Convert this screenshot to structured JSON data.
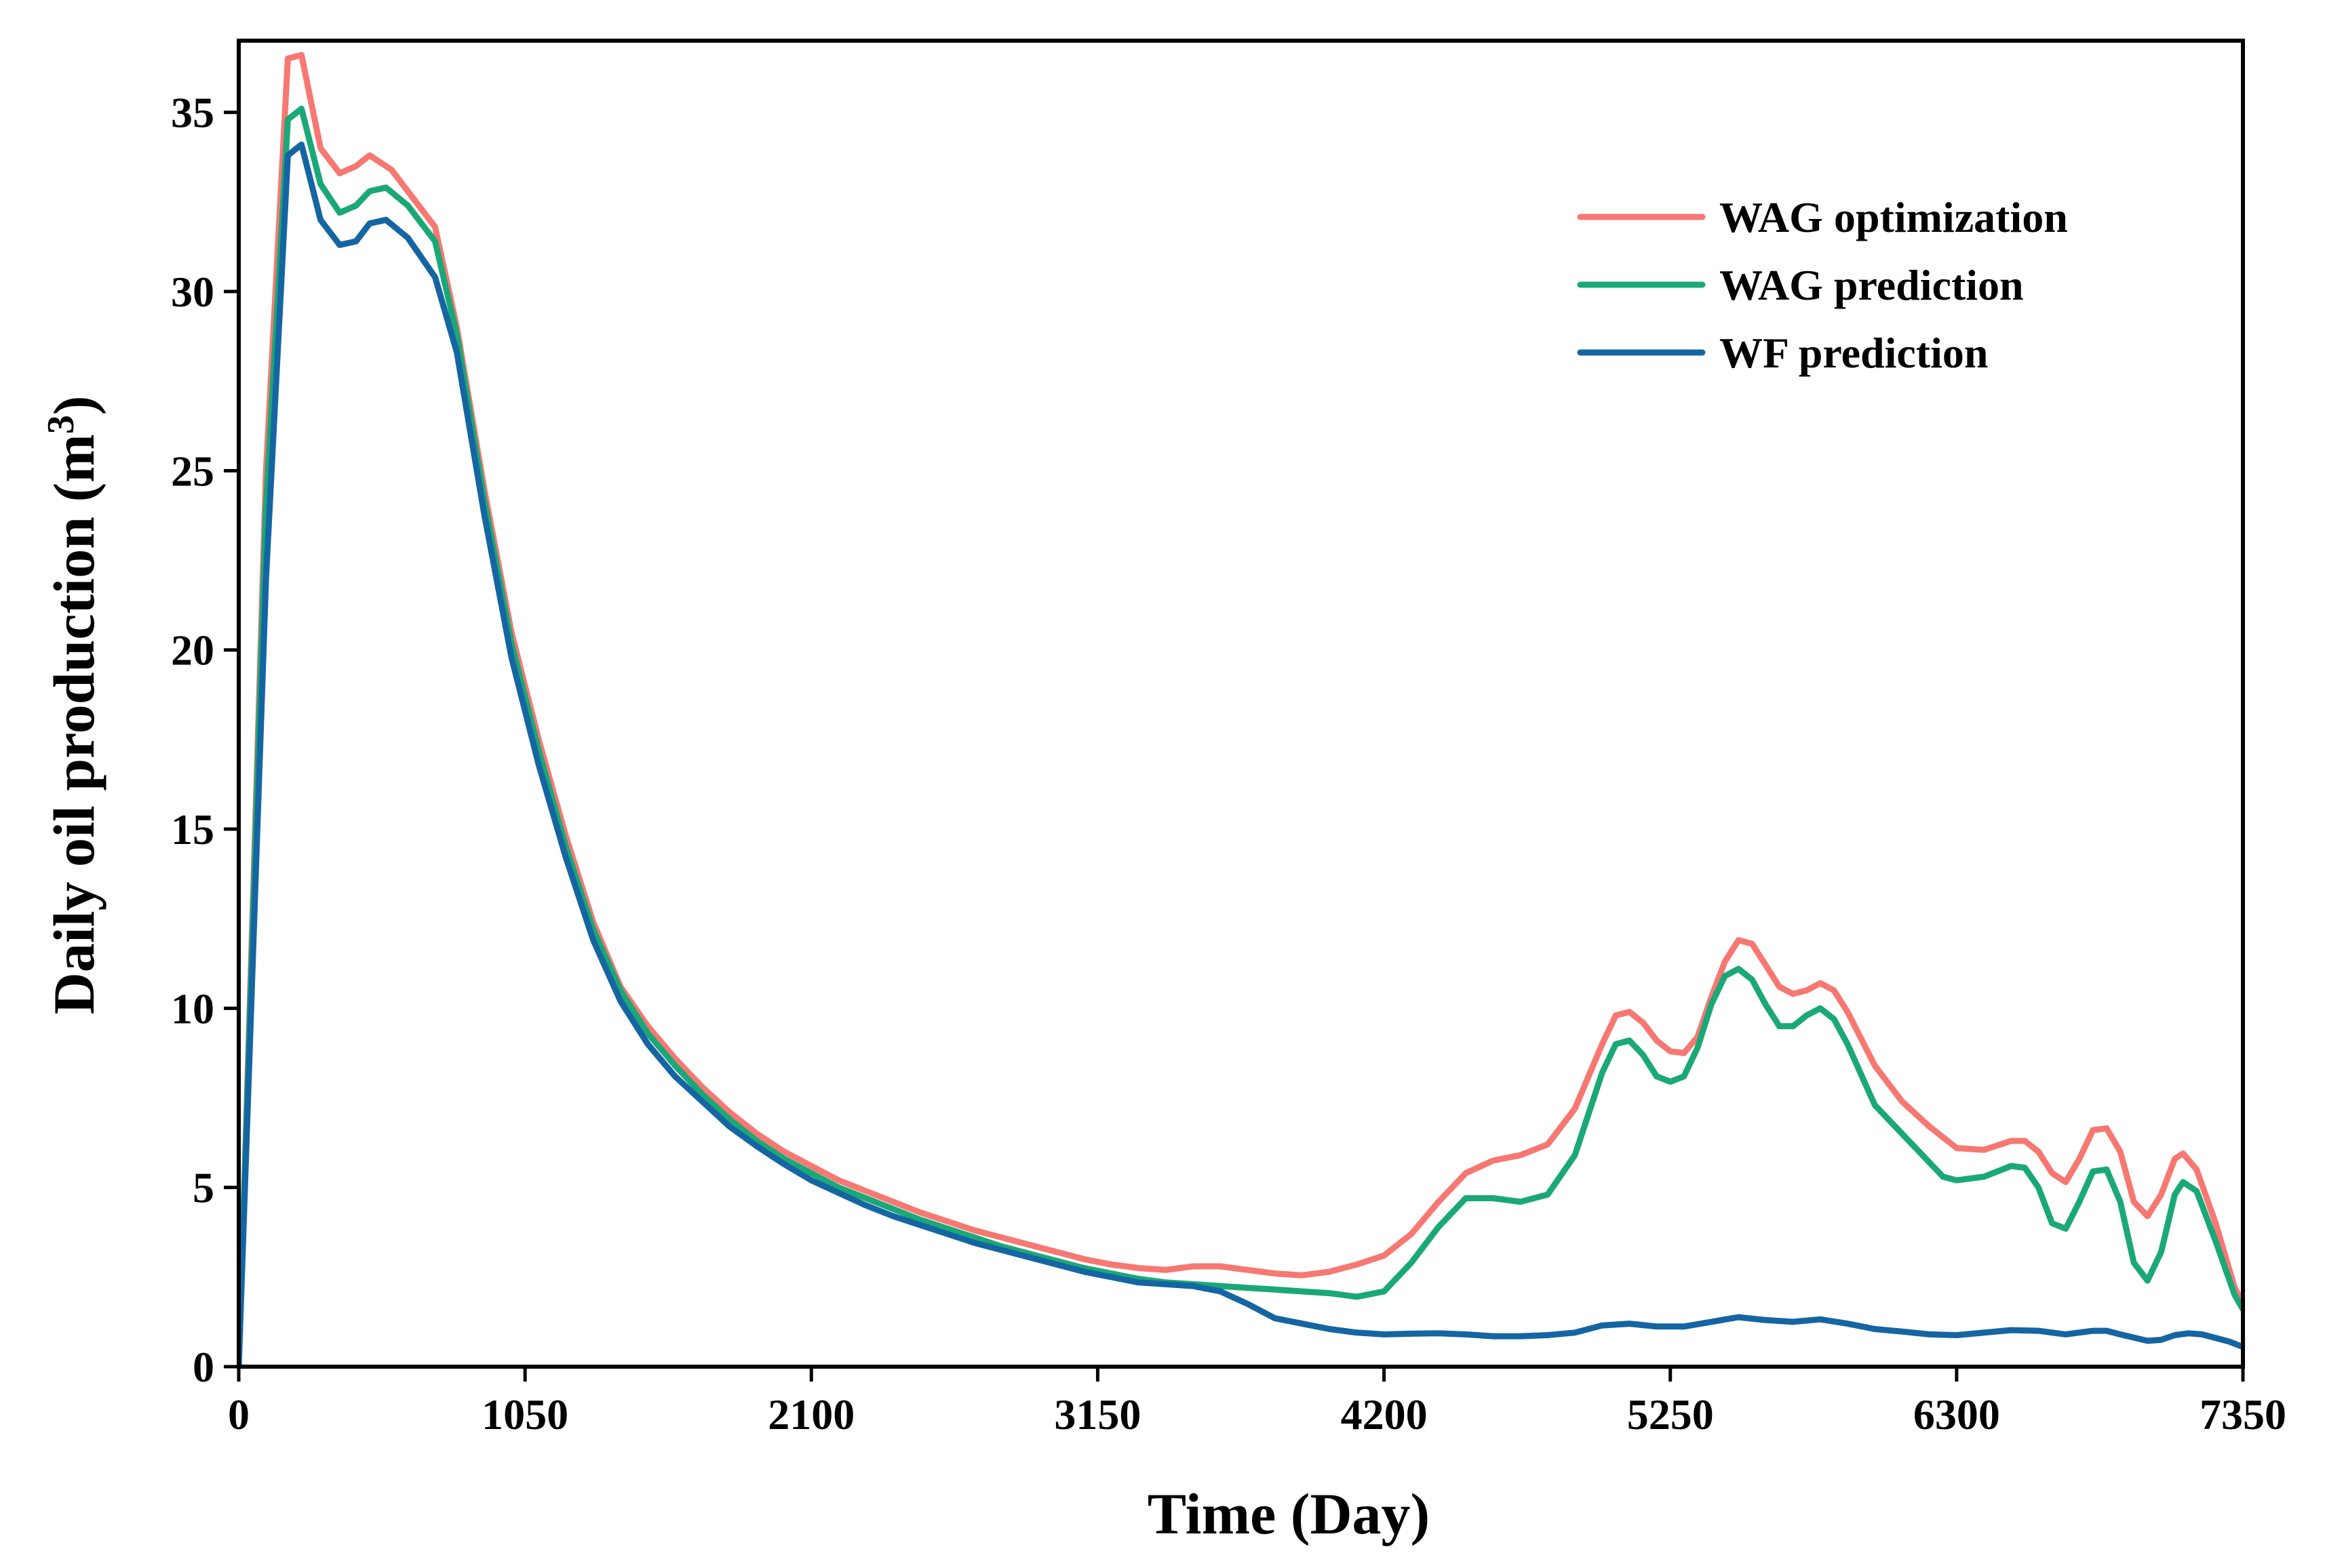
{
  "chart_data": {
    "type": "line",
    "title": "",
    "xlabel": "Time (Day)",
    "ylabel_main": "Daily oil production (m",
    "ylabel_sup": "3",
    "ylabel_close": ")",
    "xlim": [
      0,
      7350
    ],
    "ylim": [
      0,
      37
    ],
    "xticks": [
      0,
      1050,
      2100,
      3150,
      4200,
      5250,
      6300,
      7350
    ],
    "yticks": [
      0,
      5,
      10,
      15,
      20,
      25,
      30,
      35
    ],
    "grid": false,
    "legend_position": "top-right",
    "series": [
      {
        "name": "WAG optimization",
        "color": "#f77872",
        "points": [
          [
            0,
            0
          ],
          [
            100,
            25
          ],
          [
            180,
            36.5
          ],
          [
            230,
            36.6
          ],
          [
            300,
            34
          ],
          [
            370,
            33.3
          ],
          [
            430,
            33.5
          ],
          [
            480,
            33.8
          ],
          [
            560,
            33.4
          ],
          [
            640,
            32.6
          ],
          [
            720,
            31.8
          ],
          [
            800,
            29
          ],
          [
            900,
            24.5
          ],
          [
            1000,
            20.5
          ],
          [
            1100,
            17.5
          ],
          [
            1200,
            14.8
          ],
          [
            1300,
            12.4
          ],
          [
            1400,
            10.6
          ],
          [
            1500,
            9.5
          ],
          [
            1600,
            8.6
          ],
          [
            1700,
            7.8
          ],
          [
            1800,
            7.1
          ],
          [
            1900,
            6.5
          ],
          [
            2000,
            6.0
          ],
          [
            2100,
            5.6
          ],
          [
            2200,
            5.2
          ],
          [
            2300,
            4.9
          ],
          [
            2400,
            4.6
          ],
          [
            2500,
            4.3
          ],
          [
            2600,
            4.05
          ],
          [
            2700,
            3.8
          ],
          [
            2800,
            3.6
          ],
          [
            2900,
            3.4
          ],
          [
            3000,
            3.2
          ],
          [
            3100,
            3.0
          ],
          [
            3200,
            2.85
          ],
          [
            3300,
            2.75
          ],
          [
            3400,
            2.7
          ],
          [
            3500,
            2.8
          ],
          [
            3600,
            2.8
          ],
          [
            3700,
            2.7
          ],
          [
            3800,
            2.6
          ],
          [
            3900,
            2.55
          ],
          [
            4000,
            2.65
          ],
          [
            4100,
            2.85
          ],
          [
            4200,
            3.1
          ],
          [
            4300,
            3.7
          ],
          [
            4400,
            4.6
          ],
          [
            4500,
            5.4
          ],
          [
            4600,
            5.75
          ],
          [
            4700,
            5.9
          ],
          [
            4800,
            6.2
          ],
          [
            4900,
            7.2
          ],
          [
            5000,
            9.0
          ],
          [
            5050,
            9.8
          ],
          [
            5100,
            9.9
          ],
          [
            5150,
            9.6
          ],
          [
            5200,
            9.1
          ],
          [
            5250,
            8.8
          ],
          [
            5300,
            8.75
          ],
          [
            5350,
            9.2
          ],
          [
            5400,
            10.3
          ],
          [
            5450,
            11.3
          ],
          [
            5500,
            11.9
          ],
          [
            5550,
            11.8
          ],
          [
            5600,
            11.2
          ],
          [
            5650,
            10.6
          ],
          [
            5700,
            10.4
          ],
          [
            5750,
            10.5
          ],
          [
            5800,
            10.7
          ],
          [
            5850,
            10.5
          ],
          [
            5900,
            9.9
          ],
          [
            6000,
            8.4
          ],
          [
            6100,
            7.4
          ],
          [
            6200,
            6.7
          ],
          [
            6300,
            6.1
          ],
          [
            6400,
            6.05
          ],
          [
            6500,
            6.3
          ],
          [
            6550,
            6.3
          ],
          [
            6600,
            6.0
          ],
          [
            6650,
            5.4
          ],
          [
            6700,
            5.15
          ],
          [
            6750,
            5.8
          ],
          [
            6800,
            6.6
          ],
          [
            6850,
            6.65
          ],
          [
            6900,
            6.0
          ],
          [
            6950,
            4.6
          ],
          [
            7000,
            4.2
          ],
          [
            7050,
            4.8
          ],
          [
            7100,
            5.8
          ],
          [
            7130,
            5.95
          ],
          [
            7180,
            5.5
          ],
          [
            7250,
            4.0
          ],
          [
            7320,
            2.2
          ],
          [
            7350,
            1.8
          ]
        ]
      },
      {
        "name": "WAG prediction",
        "color": "#1aa877",
        "points": [
          [
            0,
            0
          ],
          [
            100,
            24
          ],
          [
            180,
            34.8
          ],
          [
            230,
            35.1
          ],
          [
            300,
            33.0
          ],
          [
            370,
            32.2
          ],
          [
            430,
            32.4
          ],
          [
            480,
            32.8
          ],
          [
            540,
            32.9
          ],
          [
            620,
            32.4
          ],
          [
            720,
            31.4
          ],
          [
            800,
            28.8
          ],
          [
            900,
            24.2
          ],
          [
            1000,
            20.2
          ],
          [
            1100,
            17.2
          ],
          [
            1200,
            14.5
          ],
          [
            1300,
            12.2
          ],
          [
            1400,
            10.5
          ],
          [
            1500,
            9.3
          ],
          [
            1600,
            8.4
          ],
          [
            1700,
            7.6
          ],
          [
            1800,
            6.9
          ],
          [
            1900,
            6.3
          ],
          [
            2000,
            5.8
          ],
          [
            2100,
            5.4
          ],
          [
            2200,
            5.0
          ],
          [
            2300,
            4.7
          ],
          [
            2400,
            4.4
          ],
          [
            2500,
            4.1
          ],
          [
            2600,
            3.85
          ],
          [
            2700,
            3.6
          ],
          [
            2800,
            3.35
          ],
          [
            2900,
            3.15
          ],
          [
            3000,
            2.95
          ],
          [
            3100,
            2.75
          ],
          [
            3200,
            2.6
          ],
          [
            3300,
            2.45
          ],
          [
            3400,
            2.35
          ],
          [
            3500,
            2.3
          ],
          [
            3600,
            2.25
          ],
          [
            3700,
            2.2
          ],
          [
            3800,
            2.15
          ],
          [
            3900,
            2.1
          ],
          [
            4000,
            2.05
          ],
          [
            4100,
            1.95
          ],
          [
            4200,
            2.1
          ],
          [
            4300,
            2.9
          ],
          [
            4400,
            3.9
          ],
          [
            4500,
            4.7
          ],
          [
            4600,
            4.7
          ],
          [
            4700,
            4.6
          ],
          [
            4800,
            4.8
          ],
          [
            4900,
            5.9
          ],
          [
            5000,
            8.2
          ],
          [
            5050,
            9.0
          ],
          [
            5100,
            9.1
          ],
          [
            5150,
            8.7
          ],
          [
            5200,
            8.1
          ],
          [
            5250,
            7.95
          ],
          [
            5300,
            8.1
          ],
          [
            5350,
            8.9
          ],
          [
            5400,
            10.1
          ],
          [
            5450,
            10.9
          ],
          [
            5500,
            11.1
          ],
          [
            5550,
            10.8
          ],
          [
            5600,
            10.1
          ],
          [
            5650,
            9.5
          ],
          [
            5700,
            9.5
          ],
          [
            5750,
            9.8
          ],
          [
            5800,
            10.0
          ],
          [
            5850,
            9.7
          ],
          [
            5900,
            9.0
          ],
          [
            6000,
            7.3
          ],
          [
            6100,
            6.5
          ],
          [
            6200,
            5.7
          ],
          [
            6250,
            5.3
          ],
          [
            6300,
            5.2
          ],
          [
            6400,
            5.3
          ],
          [
            6500,
            5.6
          ],
          [
            6550,
            5.55
          ],
          [
            6600,
            5.0
          ],
          [
            6650,
            4.0
          ],
          [
            6700,
            3.85
          ],
          [
            6750,
            4.6
          ],
          [
            6800,
            5.45
          ],
          [
            6850,
            5.5
          ],
          [
            6900,
            4.6
          ],
          [
            6950,
            2.9
          ],
          [
            7000,
            2.4
          ],
          [
            7050,
            3.2
          ],
          [
            7100,
            4.8
          ],
          [
            7130,
            5.15
          ],
          [
            7180,
            4.9
          ],
          [
            7250,
            3.5
          ],
          [
            7320,
            2.0
          ],
          [
            7350,
            1.6
          ]
        ]
      },
      {
        "name": "WF prediction",
        "color": "#1565a3",
        "points": [
          [
            0,
            0
          ],
          [
            100,
            22
          ],
          [
            180,
            33.8
          ],
          [
            230,
            34.1
          ],
          [
            300,
            32.0
          ],
          [
            370,
            31.3
          ],
          [
            430,
            31.4
          ],
          [
            480,
            31.9
          ],
          [
            540,
            32.0
          ],
          [
            620,
            31.5
          ],
          [
            720,
            30.4
          ],
          [
            800,
            28.3
          ],
          [
            900,
            23.8
          ],
          [
            1000,
            19.8
          ],
          [
            1100,
            16.8
          ],
          [
            1200,
            14.2
          ],
          [
            1300,
            11.9
          ],
          [
            1400,
            10.2
          ],
          [
            1500,
            9.0
          ],
          [
            1600,
            8.1
          ],
          [
            1700,
            7.4
          ],
          [
            1800,
            6.7
          ],
          [
            1900,
            6.15
          ],
          [
            2000,
            5.65
          ],
          [
            2100,
            5.2
          ],
          [
            2200,
            4.85
          ],
          [
            2300,
            4.5
          ],
          [
            2400,
            4.2
          ],
          [
            2500,
            3.95
          ],
          [
            2600,
            3.7
          ],
          [
            2700,
            3.45
          ],
          [
            2800,
            3.25
          ],
          [
            2900,
            3.05
          ],
          [
            3000,
            2.85
          ],
          [
            3100,
            2.65
          ],
          [
            3200,
            2.5
          ],
          [
            3300,
            2.35
          ],
          [
            3400,
            2.3
          ],
          [
            3500,
            2.25
          ],
          [
            3600,
            2.1
          ],
          [
            3700,
            1.75
          ],
          [
            3800,
            1.35
          ],
          [
            3900,
            1.2
          ],
          [
            4000,
            1.05
          ],
          [
            4100,
            0.95
          ],
          [
            4200,
            0.9
          ],
          [
            4300,
            0.92
          ],
          [
            4400,
            0.93
          ],
          [
            4500,
            0.9
          ],
          [
            4600,
            0.85
          ],
          [
            4700,
            0.85
          ],
          [
            4800,
            0.88
          ],
          [
            4900,
            0.95
          ],
          [
            5000,
            1.15
          ],
          [
            5100,
            1.2
          ],
          [
            5200,
            1.12
          ],
          [
            5300,
            1.12
          ],
          [
            5400,
            1.25
          ],
          [
            5500,
            1.38
          ],
          [
            5600,
            1.3
          ],
          [
            5700,
            1.25
          ],
          [
            5800,
            1.32
          ],
          [
            5900,
            1.2
          ],
          [
            6000,
            1.05
          ],
          [
            6100,
            0.98
          ],
          [
            6200,
            0.9
          ],
          [
            6300,
            0.88
          ],
          [
            6400,
            0.95
          ],
          [
            6500,
            1.02
          ],
          [
            6600,
            1.0
          ],
          [
            6700,
            0.9
          ],
          [
            6800,
            1.0
          ],
          [
            6850,
            1.0
          ],
          [
            6900,
            0.9
          ],
          [
            7000,
            0.72
          ],
          [
            7050,
            0.75
          ],
          [
            7100,
            0.88
          ],
          [
            7150,
            0.93
          ],
          [
            7200,
            0.9
          ],
          [
            7300,
            0.7
          ],
          [
            7350,
            0.55
          ]
        ]
      }
    ]
  }
}
